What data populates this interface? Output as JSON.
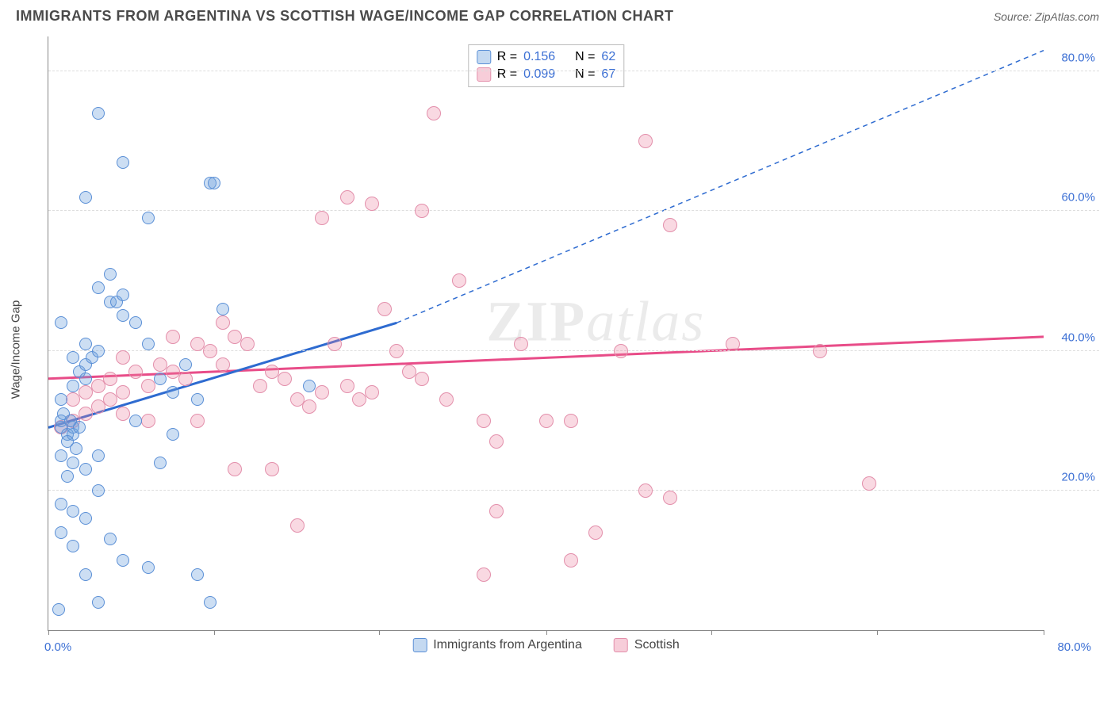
{
  "title": "IMMIGRANTS FROM ARGENTINA VS SCOTTISH WAGE/INCOME GAP CORRELATION CHART",
  "source_label": "Source: ",
  "source_name": "ZipAtlas.com",
  "ylabel": "Wage/Income Gap",
  "watermark_a": "ZIP",
  "watermark_b": "atlas",
  "chart": {
    "type": "scatter-correlation",
    "background_color": "#ffffff",
    "grid_color": "#dddddd",
    "axis_color": "#888888",
    "tick_label_color": "#3b6fd4",
    "xlim": [
      0,
      80
    ],
    "ylim": [
      0,
      85
    ],
    "yticks": [
      20,
      40,
      60,
      80
    ],
    "ytick_labels": [
      "20.0%",
      "40.0%",
      "60.0%",
      "80.0%"
    ],
    "xticks": [
      0,
      13.3,
      26.6,
      40,
      53.3,
      66.6,
      80
    ],
    "x_labels": {
      "min": "0.0%",
      "max": "80.0%"
    },
    "marker_radius_a": 8,
    "marker_radius_b": 9,
    "series_a": {
      "name": "Immigrants from Argentina",
      "color": "#6ca0dc",
      "border": "#5a8fd6",
      "fill_opacity": 0.35,
      "r_label": "R =",
      "r_value": "0.156",
      "n_label": "N =",
      "n_value": "62",
      "trend": {
        "x1": 0,
        "y1": 29,
        "x2": 28,
        "y2": 44,
        "x2_ext": 80,
        "y2_ext": 83,
        "color": "#2e6bd0",
        "width": 3
      },
      "points": [
        [
          1,
          29
        ],
        [
          1,
          30
        ],
        [
          1.5,
          28
        ],
        [
          1.2,
          31
        ],
        [
          2,
          29
        ],
        [
          2,
          28
        ],
        [
          1.5,
          27
        ],
        [
          1.8,
          30
        ],
        [
          2.2,
          26
        ],
        [
          2.5,
          29
        ],
        [
          1,
          33
        ],
        [
          2,
          35
        ],
        [
          2.5,
          37
        ],
        [
          3,
          38
        ],
        [
          3,
          36
        ],
        [
          3.5,
          39
        ],
        [
          2,
          39
        ],
        [
          4,
          40
        ],
        [
          3,
          41
        ],
        [
          5,
          47
        ],
        [
          5.5,
          47
        ],
        [
          6,
          48
        ],
        [
          6,
          45
        ],
        [
          7,
          44
        ],
        [
          8,
          41
        ],
        [
          9,
          36
        ],
        [
          10,
          34
        ],
        [
          11,
          38
        ],
        [
          12,
          33
        ],
        [
          13,
          64
        ],
        [
          13.3,
          64
        ],
        [
          14,
          46
        ],
        [
          3,
          62
        ],
        [
          4,
          74
        ],
        [
          6,
          67
        ],
        [
          8,
          59
        ],
        [
          4,
          49
        ],
        [
          5,
          51
        ],
        [
          1,
          25
        ],
        [
          2,
          24
        ],
        [
          3,
          23
        ],
        [
          4,
          25
        ],
        [
          9,
          24
        ],
        [
          1.5,
          22
        ],
        [
          1,
          18
        ],
        [
          2,
          17
        ],
        [
          3,
          16
        ],
        [
          5,
          13
        ],
        [
          6,
          10
        ],
        [
          8,
          9
        ],
        [
          12,
          8
        ],
        [
          2,
          12
        ],
        [
          3,
          8
        ],
        [
          1,
          14
        ],
        [
          4,
          4
        ],
        [
          13,
          4
        ],
        [
          0.8,
          3
        ],
        [
          4,
          20
        ],
        [
          7,
          30
        ],
        [
          10,
          28
        ],
        [
          21,
          35
        ],
        [
          1,
          44
        ]
      ]
    },
    "series_b": {
      "name": "Scottish",
      "color": "#eb82a0",
      "border": "#e38fab",
      "fill_opacity": 0.3,
      "r_label": "R =",
      "r_value": "0.099",
      "n_label": "N =",
      "n_value": "67",
      "trend": {
        "x1": 0,
        "y1": 36,
        "x2": 80,
        "y2": 42,
        "color": "#e84c88",
        "width": 3
      },
      "points": [
        [
          1,
          29
        ],
        [
          2,
          30
        ],
        [
          3,
          31
        ],
        [
          2,
          33
        ],
        [
          3,
          34
        ],
        [
          4,
          32
        ],
        [
          5,
          33
        ],
        [
          4,
          35
        ],
        [
          5,
          36
        ],
        [
          6,
          34
        ],
        [
          7,
          37
        ],
        [
          8,
          35
        ],
        [
          6,
          39
        ],
        [
          9,
          38
        ],
        [
          10,
          37
        ],
        [
          11,
          36
        ],
        [
          12,
          41
        ],
        [
          13,
          40
        ],
        [
          14,
          38
        ],
        [
          15,
          42
        ],
        [
          10,
          42
        ],
        [
          14,
          44
        ],
        [
          16,
          41
        ],
        [
          18,
          37
        ],
        [
          17,
          35
        ],
        [
          19,
          36
        ],
        [
          20,
          33
        ],
        [
          22,
          34
        ],
        [
          24,
          35
        ],
        [
          26,
          34
        ],
        [
          21,
          32
        ],
        [
          23,
          41
        ],
        [
          25,
          33
        ],
        [
          28,
          40
        ],
        [
          30,
          36
        ],
        [
          32,
          33
        ],
        [
          27,
          46
        ],
        [
          29,
          37
        ],
        [
          22,
          59
        ],
        [
          24,
          62
        ],
        [
          26,
          61
        ],
        [
          30,
          60
        ],
        [
          31,
          74
        ],
        [
          33,
          50
        ],
        [
          35,
          30
        ],
        [
          36,
          17
        ],
        [
          38,
          41
        ],
        [
          40,
          30
        ],
        [
          42,
          30
        ],
        [
          46,
          40
        ],
        [
          48,
          70
        ],
        [
          50,
          58
        ],
        [
          35,
          8
        ],
        [
          42,
          10
        ],
        [
          44,
          14
        ],
        [
          48,
          20
        ],
        [
          50,
          19
        ],
        [
          62,
          40
        ],
        [
          66,
          21
        ],
        [
          15,
          23
        ],
        [
          18,
          23
        ],
        [
          20,
          15
        ],
        [
          36,
          27
        ],
        [
          12,
          30
        ],
        [
          8,
          30
        ],
        [
          6,
          31
        ],
        [
          55,
          41
        ]
      ]
    }
  },
  "legend_bottom": {
    "a": "Immigrants from Argentina",
    "b": "Scottish"
  }
}
